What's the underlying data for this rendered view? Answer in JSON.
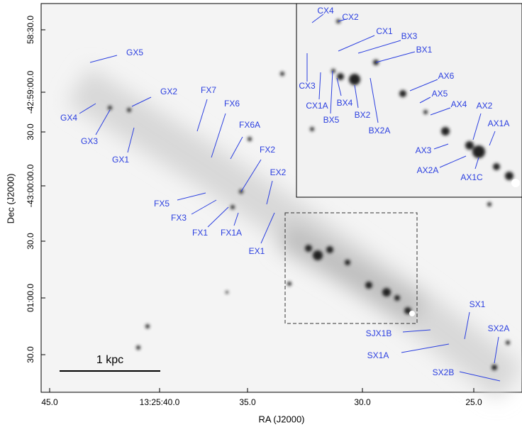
{
  "figure": {
    "x_axis": {
      "title": "RA (J2000)",
      "ticks": [
        "45.0",
        "13:25:40.0",
        "35.0",
        "30.0",
        "25.0"
      ]
    },
    "y_axis": {
      "title": "Dec (J2000)",
      "ticks": [
        "58:30.0",
        "-42:59:00.0",
        "30.0",
        "-43:00:00.0",
        "30.0",
        "01:00.0",
        "30.0"
      ]
    },
    "scale_bar": "1 kpc",
    "labels": [
      "GX5",
      "GX2",
      "GX4",
      "GX3",
      "GX1",
      "FX7",
      "FX6",
      "FX6A",
      "FX2",
      "EX2",
      "FX5",
      "FX3",
      "FX1",
      "FX1A",
      "EX1",
      "SX1",
      "SJX1B",
      "SX2A",
      "SX1A",
      "SX2B"
    ],
    "inset_labels": [
      "CX4",
      "CX2",
      "CX1",
      "BX3",
      "BX1",
      "AX6",
      "CX3",
      "AX5",
      "CX1A",
      "BX4",
      "AX4",
      "AX2",
      "BX2",
      "BX5",
      "AX1A",
      "BX2A",
      "AX3",
      "AX2A",
      "AX1C"
    ]
  }
}
